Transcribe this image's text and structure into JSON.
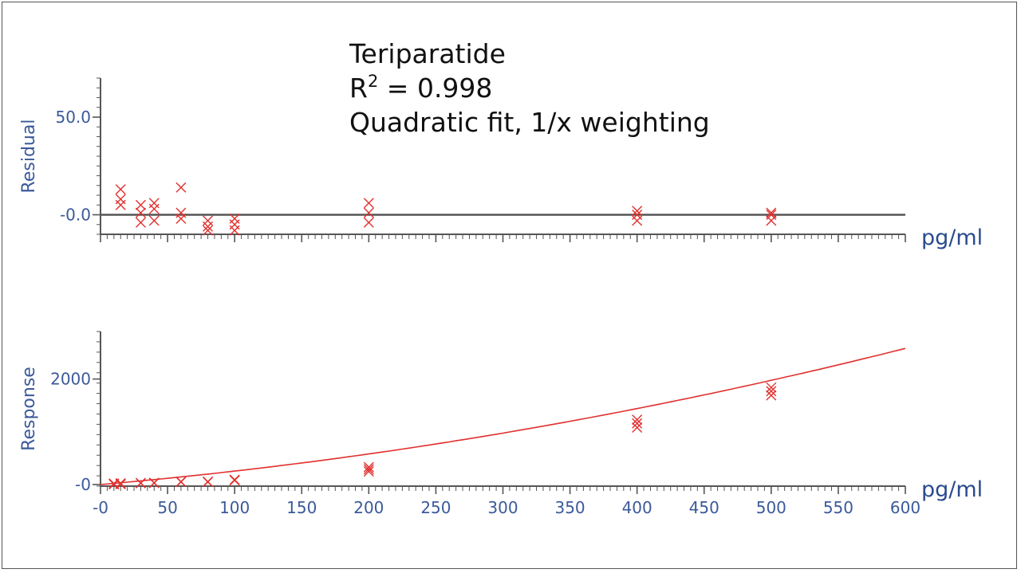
{
  "annotation": {
    "line1": "Teriparatide",
    "r_label": "R",
    "r_sup": "2",
    "r_value": " = 0.998",
    "line3": "Quadratic fit, 1/x weighting"
  },
  "colors": {
    "axis": "#555555",
    "tick_text": "#3b5a9a",
    "unit_text": "#2a4a8e",
    "data": "#e0312f"
  },
  "chart_data": [
    {
      "type": "scatter",
      "ylabel": "Residual",
      "unit": "pg/ml",
      "ylim": [
        -10,
        70
      ],
      "xlim": [
        0,
        600
      ],
      "y_ticks": [
        {
          "value": 0,
          "label": "-0.0"
        },
        {
          "value": 50,
          "label": "50.0"
        }
      ],
      "baseline": 0,
      "points": [
        {
          "x": 15,
          "y": 13
        },
        {
          "x": 15,
          "y": 8
        },
        {
          "x": 15,
          "y": 5
        },
        {
          "x": 30,
          "y": 5
        },
        {
          "x": 30,
          "y": 1
        },
        {
          "x": 30,
          "y": -4
        },
        {
          "x": 40,
          "y": 6
        },
        {
          "x": 40,
          "y": 3
        },
        {
          "x": 40,
          "y": -3
        },
        {
          "x": 60,
          "y": 14
        },
        {
          "x": 60,
          "y": 1
        },
        {
          "x": 60,
          "y": -2
        },
        {
          "x": 80,
          "y": -3
        },
        {
          "x": 80,
          "y": -6
        },
        {
          "x": 80,
          "y": -8
        },
        {
          "x": 100,
          "y": -2
        },
        {
          "x": 100,
          "y": -5
        },
        {
          "x": 100,
          "y": -8
        },
        {
          "x": 200,
          "y": 6
        },
        {
          "x": 200,
          "y": 1
        },
        {
          "x": 200,
          "y": -4
        },
        {
          "x": 400,
          "y": 2
        },
        {
          "x": 400,
          "y": 0
        },
        {
          "x": 400,
          "y": -3
        },
        {
          "x": 500,
          "y": 1
        },
        {
          "x": 500,
          "y": 0
        },
        {
          "x": 500,
          "y": -3
        }
      ]
    },
    {
      "type": "scatter",
      "ylabel": "Response",
      "unit": "pg/ml",
      "ylim": [
        -30,
        2900
      ],
      "xlim": [
        0,
        600
      ],
      "x_ticks": [
        "-0",
        "50",
        "100",
        "150",
        "200",
        "250",
        "300",
        "350",
        "400",
        "450",
        "500",
        "550",
        "600"
      ],
      "y_ticks": [
        {
          "value": 0,
          "label": "-0"
        },
        {
          "value": 2000,
          "label": "2000"
        }
      ],
      "fit": {
        "model": "quadratic",
        "weighting": "1/x",
        "a": 0.0035,
        "b": 2.2,
        "c": 0
      },
      "points": [
        {
          "x": 10,
          "y": 20
        },
        {
          "x": 10,
          "y": 10
        },
        {
          "x": 10,
          "y": 5
        },
        {
          "x": 15,
          "y": 25
        },
        {
          "x": 15,
          "y": 15
        },
        {
          "x": 15,
          "y": 8
        },
        {
          "x": 30,
          "y": 30
        },
        {
          "x": 30,
          "y": 25
        },
        {
          "x": 40,
          "y": 35
        },
        {
          "x": 40,
          "y": 28
        },
        {
          "x": 60,
          "y": 55
        },
        {
          "x": 60,
          "y": 50
        },
        {
          "x": 80,
          "y": 55
        },
        {
          "x": 80,
          "y": 50
        },
        {
          "x": 100,
          "y": 90
        },
        {
          "x": 100,
          "y": 80
        },
        {
          "x": 200,
          "y": 330
        },
        {
          "x": 200,
          "y": 290
        },
        {
          "x": 200,
          "y": 250
        },
        {
          "x": 400,
          "y": 1230
        },
        {
          "x": 400,
          "y": 1160
        },
        {
          "x": 400,
          "y": 1080
        },
        {
          "x": 500,
          "y": 1840
        },
        {
          "x": 500,
          "y": 1770
        },
        {
          "x": 500,
          "y": 1690
        }
      ]
    }
  ]
}
